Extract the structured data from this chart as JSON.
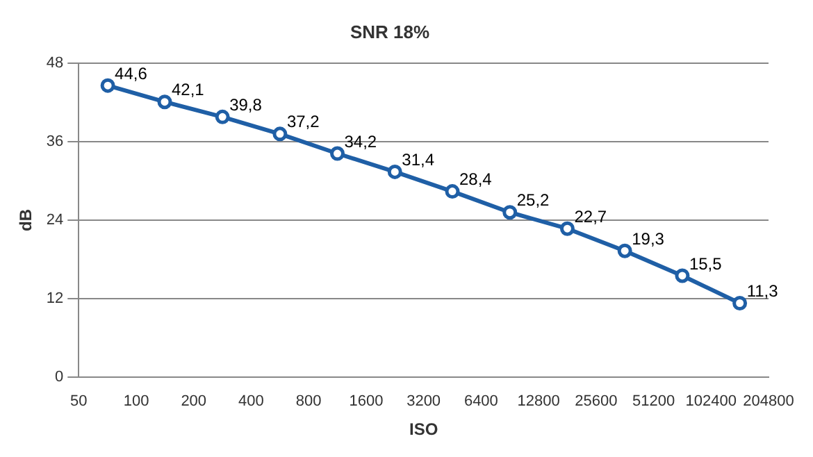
{
  "chart_data": {
    "type": "line",
    "title": "SNR 18%",
    "xlabel": "ISO",
    "ylabel": "dB",
    "x": [
      71,
      141,
      283,
      566,
      1131,
      2263,
      4525,
      9051,
      18102,
      36204,
      72408,
      144815
    ],
    "series": [
      {
        "color": "#1f5fa6",
        "values": [
          44.6,
          42.1,
          39.8,
          37.2,
          34.2,
          31.4,
          28.4,
          25.2,
          22.7,
          19.3,
          15.5,
          11.3
        ],
        "value_labels": [
          "44,6",
          "42,1",
          "39,8",
          "37,2",
          "34,2",
          "31,4",
          "28,4",
          "25,2",
          "22,7",
          "19,3",
          "15,5",
          "11,3"
        ]
      }
    ],
    "log": "x",
    "xlim": [
      50,
      204800
    ],
    "xticks": [
      50,
      100,
      200,
      400,
      800,
      1600,
      3200,
      6400,
      12800,
      25600,
      51200,
      102400,
      204800
    ],
    "ylim": [
      0,
      48
    ],
    "yticks": [
      0,
      12,
      24,
      36,
      48
    ],
    "grid": "y",
    "legend": false,
    "marker": "circle",
    "line_style": "solid"
  }
}
